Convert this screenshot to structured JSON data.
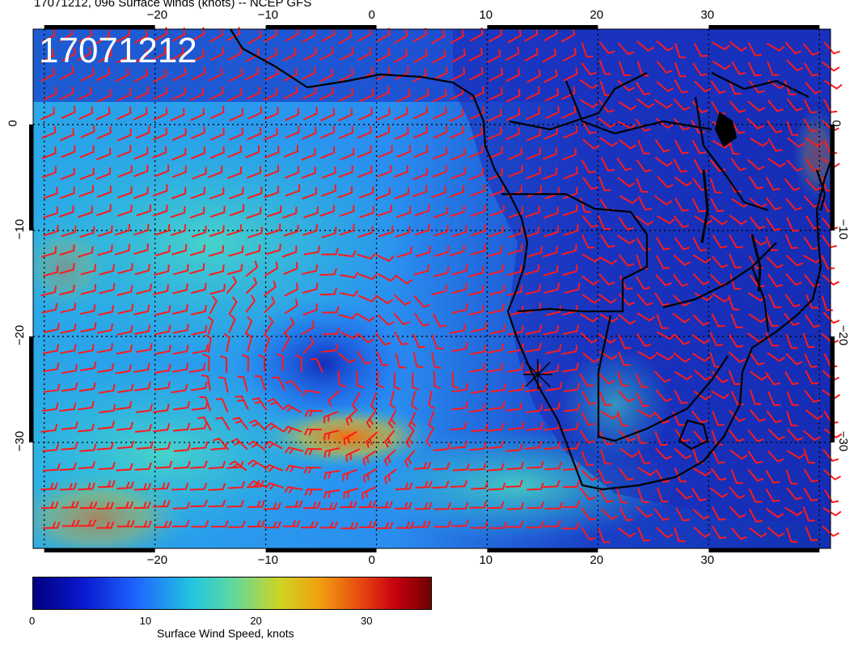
{
  "title": "17071212, 096 Surface winds (knots) -- NCEP GFS",
  "stamp": "17071212",
  "map": {
    "lon_range": [
      -31,
      41
    ],
    "lat_range": [
      -40,
      9
    ],
    "lon_ticks": [
      "−20",
      "−10",
      "0",
      "10",
      "20",
      "30"
    ],
    "lat_ticks": [
      "0",
      "−10",
      "−20",
      "−30"
    ],
    "marker": "cross-marker"
  },
  "colorbar": {
    "ticks": [
      "0",
      "10",
      "20",
      "30"
    ],
    "label": "Surface Wind Speed, knots",
    "min": 0,
    "max": 36
  },
  "colors": {
    "wind_barb": "#ff1a1a",
    "coast": "#000000",
    "grid": "#000000"
  }
}
